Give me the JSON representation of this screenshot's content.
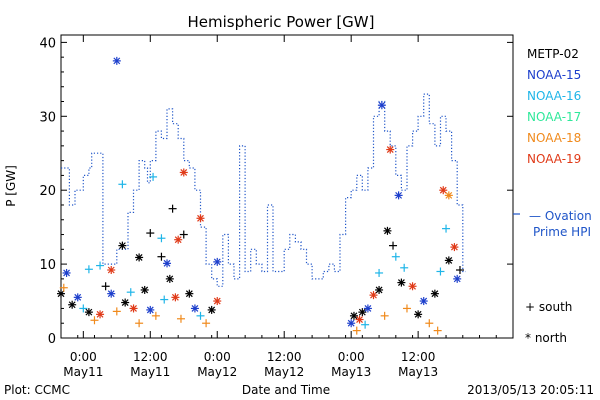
{
  "chart_data": {
    "type": "scatter",
    "title": "Hemispheric Power [GW]",
    "ylabel": "P [GW]",
    "xlabel": "Date and Time",
    "ylim": [
      0,
      41
    ],
    "yticks": [
      0,
      10,
      20,
      30,
      40
    ],
    "xlim": [
      "2013-05-10T20:00",
      "2013-05-14T05:00"
    ],
    "xticks": [
      {
        "t": "2013-05-11T00:00",
        "line1": "0:00",
        "line2": "May11"
      },
      {
        "t": "2013-05-11T12:00",
        "line1": "12:00",
        "line2": "May11"
      },
      {
        "t": "2013-05-12T00:00",
        "line1": "0:00",
        "line2": "May12"
      },
      {
        "t": "2013-05-12T12:00",
        "line1": "12:00",
        "line2": "May12"
      },
      {
        "t": "2013-05-13T00:00",
        "line1": "0:00",
        "line2": "May13"
      },
      {
        "t": "2013-05-13T12:00",
        "line1": "12:00",
        "line2": "May13"
      }
    ],
    "legend": {
      "placement": "right",
      "satellites": [
        {
          "name": "METP-02",
          "color": "#000000"
        },
        {
          "name": "NOAA-15",
          "color": "#1d3fcc"
        },
        {
          "name": "NOAA-16",
          "color": "#1fb5e8"
        },
        {
          "name": "NOAA-17",
          "color": "#2ee89a"
        },
        {
          "name": "NOAA-18",
          "color": "#f08a1c"
        },
        {
          "name": "NOAA-19",
          "color": "#e03a18"
        }
      ],
      "ovation_line1": "— Ovation",
      "ovation_line2": "Prime HPI",
      "ovation_color": "#1f55c8",
      "south_label": "+ south",
      "north_label": "* north"
    },
    "ovation": [
      [
        "2013-05-10T20:00",
        23
      ],
      [
        "2013-05-10T21:00",
        23
      ],
      [
        "2013-05-10T21:30",
        18
      ],
      [
        "2013-05-10T22:30",
        20
      ],
      [
        "2013-05-11T00:00",
        22
      ],
      [
        "2013-05-11T01:00",
        23
      ],
      [
        "2013-05-11T01:30",
        25
      ],
      [
        "2013-05-11T02:30",
        25
      ],
      [
        "2013-05-11T03:30",
        10
      ],
      [
        "2013-05-11T05:00",
        10
      ],
      [
        "2013-05-11T06:00",
        12
      ],
      [
        "2013-05-11T07:30",
        12
      ],
      [
        "2013-05-11T08:00",
        17
      ],
      [
        "2013-05-11T09:00",
        20
      ],
      [
        "2013-05-11T10:00",
        24
      ],
      [
        "2013-05-11T11:00",
        23
      ],
      [
        "2013-05-11T11:30",
        21
      ],
      [
        "2013-05-11T12:00",
        24
      ],
      [
        "2013-05-11T13:00",
        28
      ],
      [
        "2013-05-11T14:00",
        27
      ],
      [
        "2013-05-11T15:00",
        31
      ],
      [
        "2013-05-11T16:00",
        29
      ],
      [
        "2013-05-11T17:00",
        27
      ],
      [
        "2013-05-11T18:00",
        24
      ],
      [
        "2013-05-11T19:00",
        23
      ],
      [
        "2013-05-11T20:00",
        20
      ],
      [
        "2013-05-11T21:00",
        15
      ],
      [
        "2013-05-11T22:00",
        10
      ],
      [
        "2013-05-11T23:00",
        8
      ],
      [
        "2013-05-12T00:00",
        7
      ],
      [
        "2013-05-12T01:00",
        14
      ],
      [
        "2013-05-12T02:00",
        10
      ],
      [
        "2013-05-12T03:00",
        8
      ],
      [
        "2013-05-12T04:00",
        26
      ],
      [
        "2013-05-12T05:00",
        9
      ],
      [
        "2013-05-12T06:00",
        12
      ],
      [
        "2013-05-12T07:00",
        10
      ],
      [
        "2013-05-12T08:00",
        9
      ],
      [
        "2013-05-12T09:00",
        18
      ],
      [
        "2013-05-12T10:00",
        9
      ],
      [
        "2013-05-12T11:00",
        9
      ],
      [
        "2013-05-12T12:00",
        12
      ],
      [
        "2013-05-12T13:00",
        14
      ],
      [
        "2013-05-12T14:00",
        13
      ],
      [
        "2013-05-12T15:00",
        12
      ],
      [
        "2013-05-12T16:00",
        10
      ],
      [
        "2013-05-12T17:00",
        8
      ],
      [
        "2013-05-12T18:00",
        8
      ],
      [
        "2013-05-12T19:00",
        9
      ],
      [
        "2013-05-12T20:00",
        10
      ],
      [
        "2013-05-12T21:00",
        9
      ],
      [
        "2013-05-12T22:00",
        14
      ],
      [
        "2013-05-12T23:00",
        19
      ],
      [
        "2013-05-13T00:00",
        20
      ],
      [
        "2013-05-13T01:00",
        22
      ],
      [
        "2013-05-13T02:00",
        20
      ],
      [
        "2013-05-13T03:00",
        23
      ],
      [
        "2013-05-13T04:00",
        30
      ],
      [
        "2013-05-13T05:00",
        32
      ],
      [
        "2013-05-13T06:00",
        28
      ],
      [
        "2013-05-13T07:00",
        26
      ],
      [
        "2013-05-13T08:00",
        22
      ],
      [
        "2013-05-13T09:00",
        20
      ],
      [
        "2013-05-13T10:00",
        26
      ],
      [
        "2013-05-13T11:00",
        28
      ],
      [
        "2013-05-13T12:00",
        30
      ],
      [
        "2013-05-13T13:00",
        33
      ],
      [
        "2013-05-13T14:00",
        29
      ],
      [
        "2013-05-13T15:00",
        26
      ],
      [
        "2013-05-13T16:00",
        30
      ],
      [
        "2013-05-13T17:00",
        28
      ],
      [
        "2013-05-13T18:00",
        24
      ],
      [
        "2013-05-13T19:00",
        18
      ],
      [
        "2013-05-13T20:00",
        9
      ]
    ],
    "points": [
      {
        "sat": "NOAA-15",
        "hemi": "north",
        "t": "2013-05-11T06:00",
        "v": 37.5
      },
      {
        "sat": "NOAA-16",
        "hemi": "south",
        "t": "2013-05-11T07:00",
        "v": 20.8
      },
      {
        "sat": "NOAA-16",
        "hemi": "south",
        "t": "2013-05-11T12:30",
        "v": 21.8
      },
      {
        "sat": "NOAA-19",
        "hemi": "north",
        "t": "2013-05-11T18:00",
        "v": 22.4
      },
      {
        "sat": "METP-02",
        "hemi": "south",
        "t": "2013-05-11T16:00",
        "v": 17.5
      },
      {
        "sat": "NOAA-19",
        "hemi": "north",
        "t": "2013-05-11T21:00",
        "v": 16.2
      },
      {
        "sat": "METP-02",
        "hemi": "north",
        "t": "2013-05-11T07:00",
        "v": 12.5
      },
      {
        "sat": "METP-02",
        "hemi": "south",
        "t": "2013-05-11T12:00",
        "v": 14.2
      },
      {
        "sat": "NOAA-16",
        "hemi": "south",
        "t": "2013-05-11T14:00",
        "v": 13.5
      },
      {
        "sat": "NOAA-19",
        "hemi": "north",
        "t": "2013-05-11T17:00",
        "v": 13.3
      },
      {
        "sat": "METP-02",
        "hemi": "south",
        "t": "2013-05-11T18:00",
        "v": 14.0
      },
      {
        "sat": "METP-02",
        "hemi": "north",
        "t": "2013-05-11T10:00",
        "v": 10.9
      },
      {
        "sat": "NOAA-16",
        "hemi": "south",
        "t": "2013-05-11T01:00",
        "v": 9.3
      },
      {
        "sat": "NOAA-16",
        "hemi": "south",
        "t": "2013-05-11T03:00",
        "v": 9.8
      },
      {
        "sat": "NOAA-19",
        "hemi": "north",
        "t": "2013-05-11T05:00",
        "v": 9.2
      },
      {
        "sat": "NOAA-15",
        "hemi": "north",
        "t": "2013-05-10T21:00",
        "v": 8.8
      },
      {
        "sat": "METP-02",
        "hemi": "south",
        "t": "2013-05-11T14:00",
        "v": 11.0
      },
      {
        "sat": "NOAA-15",
        "hemi": "north",
        "t": "2013-05-11T15:00",
        "v": 10.1
      },
      {
        "sat": "NOAA-15",
        "hemi": "north",
        "t": "2013-05-12T00:00",
        "v": 10.3
      },
      {
        "sat": "METP-02",
        "hemi": "north",
        "t": "2013-05-10T20:00",
        "v": 6.0
      },
      {
        "sat": "NOAA-18",
        "hemi": "south",
        "t": "2013-05-10T20:30",
        "v": 6.8
      },
      {
        "sat": "METP-02",
        "hemi": "north",
        "t": "2013-05-10T22:00",
        "v": 4.5
      },
      {
        "sat": "NOAA-15",
        "hemi": "north",
        "t": "2013-05-10T23:00",
        "v": 5.5
      },
      {
        "sat": "NOAA-16",
        "hemi": "south",
        "t": "2013-05-11T00:00",
        "v": 4.0
      },
      {
        "sat": "METP-02",
        "hemi": "north",
        "t": "2013-05-11T01:00",
        "v": 3.5
      },
      {
        "sat": "NOAA-18",
        "hemi": "south",
        "t": "2013-05-11T02:00",
        "v": 2.4
      },
      {
        "sat": "NOAA-19",
        "hemi": "north",
        "t": "2013-05-11T03:00",
        "v": 3.2
      },
      {
        "sat": "METP-02",
        "hemi": "south",
        "t": "2013-05-11T04:00",
        "v": 7.0
      },
      {
        "sat": "NOAA-15",
        "hemi": "north",
        "t": "2013-05-11T05:00",
        "v": 6.0
      },
      {
        "sat": "NOAA-18",
        "hemi": "south",
        "t": "2013-05-11T06:00",
        "v": 3.6
      },
      {
        "sat": "METP-02",
        "hemi": "north",
        "t": "2013-05-11T07:30",
        "v": 4.8
      },
      {
        "sat": "NOAA-16",
        "hemi": "south",
        "t": "2013-05-11T08:30",
        "v": 6.2
      },
      {
        "sat": "NOAA-19",
        "hemi": "north",
        "t": "2013-05-11T09:00",
        "v": 4.0
      },
      {
        "sat": "NOAA-18",
        "hemi": "south",
        "t": "2013-05-11T10:00",
        "v": 2.0
      },
      {
        "sat": "METP-02",
        "hemi": "north",
        "t": "2013-05-11T11:00",
        "v": 6.5
      },
      {
        "sat": "NOAA-15",
        "hemi": "north",
        "t": "2013-05-11T12:00",
        "v": 3.8
      },
      {
        "sat": "NOAA-18",
        "hemi": "south",
        "t": "2013-05-11T13:00",
        "v": 3.0
      },
      {
        "sat": "NOAA-16",
        "hemi": "south",
        "t": "2013-05-11T14:30",
        "v": 5.2
      },
      {
        "sat": "METP-02",
        "hemi": "north",
        "t": "2013-05-11T15:30",
        "v": 8.0
      },
      {
        "sat": "NOAA-19",
        "hemi": "north",
        "t": "2013-05-11T16:30",
        "v": 5.5
      },
      {
        "sat": "NOAA-18",
        "hemi": "south",
        "t": "2013-05-11T17:30",
        "v": 2.6
      },
      {
        "sat": "METP-02",
        "hemi": "north",
        "t": "2013-05-11T19:00",
        "v": 6.0
      },
      {
        "sat": "NOAA-15",
        "hemi": "north",
        "t": "2013-05-11T20:00",
        "v": 4.0
      },
      {
        "sat": "NOAA-16",
        "hemi": "south",
        "t": "2013-05-11T21:00",
        "v": 3.0
      },
      {
        "sat": "NOAA-18",
        "hemi": "south",
        "t": "2013-05-11T22:00",
        "v": 2.0
      },
      {
        "sat": "METP-02",
        "hemi": "north",
        "t": "2013-05-11T23:00",
        "v": 3.8
      },
      {
        "sat": "NOAA-19",
        "hemi": "north",
        "t": "2013-05-12T00:00",
        "v": 5.0
      },
      {
        "sat": "NOAA-15",
        "hemi": "north",
        "t": "2013-05-13T00:00",
        "v": 2.0
      },
      {
        "sat": "METP-02",
        "hemi": "north",
        "t": "2013-05-13T00:30",
        "v": 3.0
      },
      {
        "sat": "NOAA-18",
        "hemi": "south",
        "t": "2013-05-13T01:00",
        "v": 1.0
      },
      {
        "sat": "NOAA-19",
        "hemi": "north",
        "t": "2013-05-13T01:30",
        "v": 2.5
      },
      {
        "sat": "METP-02",
        "hemi": "north",
        "t": "2013-05-13T02:00",
        "v": 3.5
      },
      {
        "sat": "NOAA-16",
        "hemi": "south",
        "t": "2013-05-13T02:30",
        "v": 1.8
      },
      {
        "sat": "NOAA-15",
        "hemi": "north",
        "t": "2013-05-13T03:00",
        "v": 4.0
      },
      {
        "sat": "NOAA-19",
        "hemi": "north",
        "t": "2013-05-13T04:00",
        "v": 5.8
      },
      {
        "sat": "METP-02",
        "hemi": "north",
        "t": "2013-05-13T05:00",
        "v": 6.5
      },
      {
        "sat": "NOAA-15",
        "hemi": "north",
        "t": "2013-05-13T05:30",
        "v": 31.5
      },
      {
        "sat": "NOAA-16",
        "hemi": "south",
        "t": "2013-05-13T05:00",
        "v": 8.8
      },
      {
        "sat": "METP-02",
        "hemi": "north",
        "t": "2013-05-13T06:30",
        "v": 14.5
      },
      {
        "sat": "NOAA-18",
        "hemi": "south",
        "t": "2013-05-13T06:00",
        "v": 3.0
      },
      {
        "sat": "NOAA-19",
        "hemi": "north",
        "t": "2013-05-13T07:00",
        "v": 25.5
      },
      {
        "sat": "METP-02",
        "hemi": "south",
        "t": "2013-05-13T07:30",
        "v": 12.5
      },
      {
        "sat": "NOAA-16",
        "hemi": "south",
        "t": "2013-05-13T08:00",
        "v": 11.0
      },
      {
        "sat": "NOAA-15",
        "hemi": "north",
        "t": "2013-05-13T08:30",
        "v": 19.3
      },
      {
        "sat": "METP-02",
        "hemi": "north",
        "t": "2013-05-13T09:00",
        "v": 7.5
      },
      {
        "sat": "NOAA-16",
        "hemi": "south",
        "t": "2013-05-13T09:30",
        "v": 9.5
      },
      {
        "sat": "NOAA-18",
        "hemi": "south",
        "t": "2013-05-13T10:00",
        "v": 4.0
      },
      {
        "sat": "NOAA-19",
        "hemi": "north",
        "t": "2013-05-13T11:00",
        "v": 7.0
      },
      {
        "sat": "METP-02",
        "hemi": "north",
        "t": "2013-05-13T12:00",
        "v": 3.2
      },
      {
        "sat": "NOAA-15",
        "hemi": "north",
        "t": "2013-05-13T13:00",
        "v": 5.0
      },
      {
        "sat": "NOAA-18",
        "hemi": "south",
        "t": "2013-05-13T14:00",
        "v": 2.0
      },
      {
        "sat": "METP-02",
        "hemi": "north",
        "t": "2013-05-13T15:00",
        "v": 6.0
      },
      {
        "sat": "NOAA-16",
        "hemi": "south",
        "t": "2013-05-13T16:00",
        "v": 9.0
      },
      {
        "sat": "NOAA-19",
        "hemi": "north",
        "t": "2013-05-13T16:30",
        "v": 20.0
      },
      {
        "sat": "NOAA-18",
        "hemi": "north",
        "t": "2013-05-13T17:30",
        "v": 19.3
      },
      {
        "sat": "NOAA-16",
        "hemi": "south",
        "t": "2013-05-13T17:00",
        "v": 14.8
      },
      {
        "sat": "METP-02",
        "hemi": "north",
        "t": "2013-05-13T17:30",
        "v": 10.5
      },
      {
        "sat": "NOAA-19",
        "hemi": "north",
        "t": "2013-05-13T18:30",
        "v": 12.3
      },
      {
        "sat": "NOAA-15",
        "hemi": "north",
        "t": "2013-05-13T19:00",
        "v": 8.0
      },
      {
        "sat": "NOAA-18",
        "hemi": "south",
        "t": "2013-05-13T15:30",
        "v": 1.0
      },
      {
        "sat": "METP-02",
        "hemi": "south",
        "t": "2013-05-13T19:30",
        "v": 9.2
      }
    ]
  },
  "footer": {
    "left": "Plot: CCMC",
    "right": "2013/05/13 20:05:11"
  }
}
